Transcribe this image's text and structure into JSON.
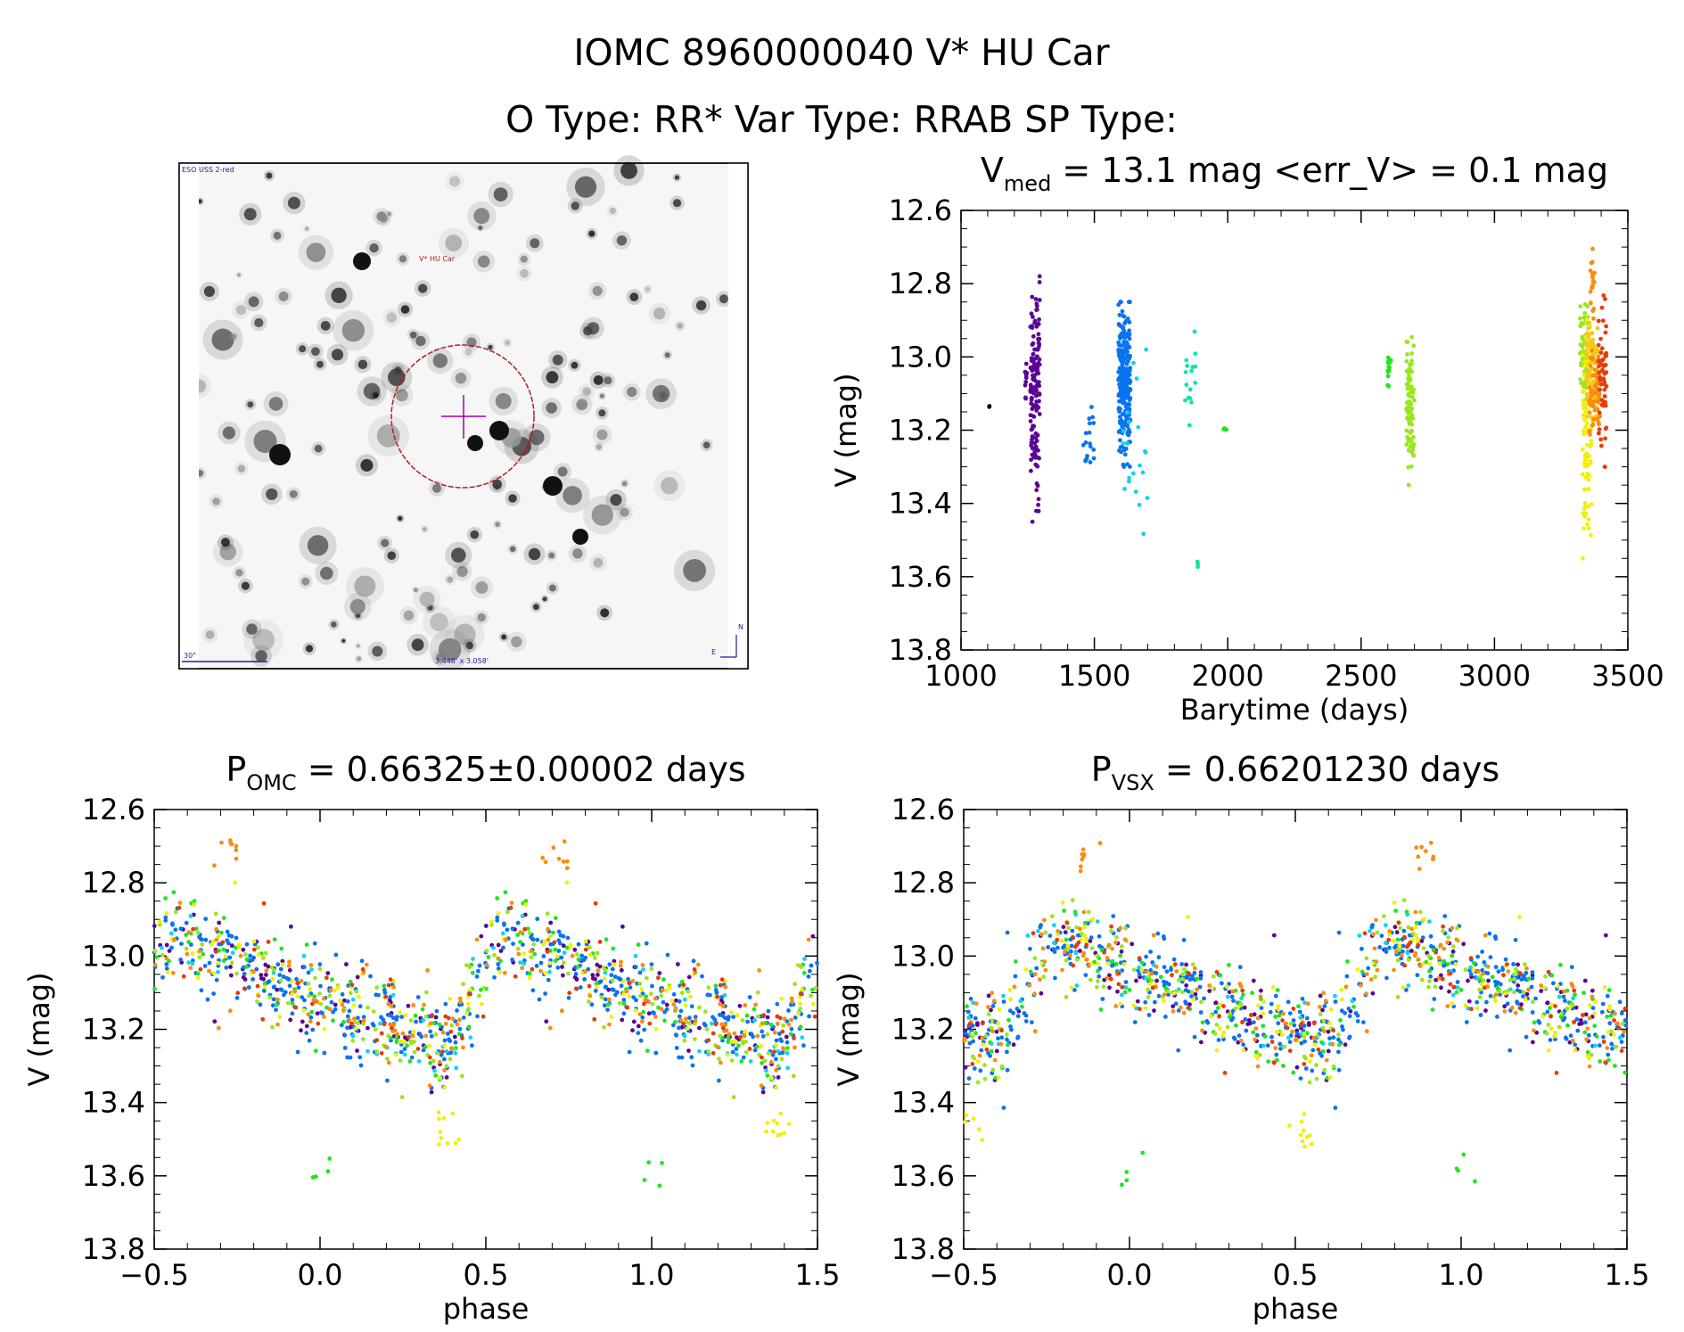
{
  "header": {
    "title": "IOMC 8960000040   V* HU Car",
    "subtitle": "O Type: RR*  Var Type: RRAB  SP Type:"
  },
  "finder": {
    "survey_label": "ESO USS 2-red",
    "target_label": "V* HU Car",
    "scale_label": "30\"",
    "fov_label": "3.448' x 3.058'",
    "compass_n": "N",
    "compass_e": "E"
  },
  "colors": {
    "purple": "#5a0596",
    "blue": "#0a73f0",
    "cyan": "#12d2f0",
    "teal": "#12e6a0",
    "green": "#1ee61e",
    "lime": "#9ae61e",
    "yellow": "#f0f00a",
    "gold": "#f5c814",
    "orange": "#fa8c0f",
    "red": "#e63c0a",
    "black": "#000000",
    "finder_circle": "#b41e1e",
    "finder_cross": "#a000a0",
    "finder_text_blue": "#1e1e96"
  },
  "chart_data": [
    {
      "type": "scatter",
      "id": "lightcurve",
      "title_main": "V",
      "title_sub": "med",
      "title_rest": " = 13.1 mag <err_V> = 0.1 mag",
      "xlabel": "Barytime (days)",
      "ylabel": "V (mag)",
      "xlim": [
        1000,
        3500
      ],
      "ylim": [
        12.6,
        13.8
      ],
      "y_inverted": true,
      "xticks": [
        1000,
        1500,
        2000,
        2500,
        3000,
        3500
      ],
      "yticks": [
        12.6,
        12.8,
        13.0,
        13.2,
        13.4,
        13.6,
        13.8
      ],
      "x_tick_labels": [
        "1000",
        "1500",
        "2000",
        "2500",
        "3000",
        "3500"
      ],
      "y_tick_labels": [
        "12.6",
        "12.8",
        "13.0",
        "13.2",
        "13.4",
        "13.6",
        "13.8"
      ],
      "groups": [
        {
          "color": "black",
          "x_range": [
            1105,
            1110
          ],
          "v_range": [
            13.12,
            13.15
          ],
          "n": 2
        },
        {
          "color": "purple",
          "x_range": [
            1240,
            1250
          ],
          "v_range": [
            12.95,
            13.15
          ],
          "n": 10
        },
        {
          "color": "purple",
          "x_range": [
            1260,
            1295
          ],
          "v_range": [
            12.78,
            13.45
          ],
          "n": 140
        },
        {
          "color": "blue",
          "x_range": [
            1455,
            1500
          ],
          "v_range": [
            13.08,
            13.35
          ],
          "n": 18
        },
        {
          "color": "blue",
          "x_range": [
            1590,
            1635
          ],
          "v_range": [
            12.85,
            13.3
          ],
          "n": 260
        },
        {
          "color": "cyan",
          "x_range": [
            1600,
            1700
          ],
          "v_range": [
            12.98,
            13.55
          ],
          "n": 22
        },
        {
          "color": "teal",
          "x_range": [
            1840,
            1880
          ],
          "v_range": [
            12.88,
            13.25
          ],
          "n": 16
        },
        {
          "color": "teal",
          "x_range": [
            1885,
            1895
          ],
          "v_range": [
            13.55,
            13.6
          ],
          "n": 3
        },
        {
          "color": "green",
          "x_range": [
            1985,
            1995
          ],
          "v_range": [
            13.19,
            13.21
          ],
          "n": 4
        },
        {
          "color": "green",
          "x_range": [
            2595,
            2615
          ],
          "v_range": [
            12.98,
            13.08
          ],
          "n": 16
        },
        {
          "color": "lime",
          "x_range": [
            2670,
            2700
          ],
          "v_range": [
            12.92,
            13.35
          ],
          "n": 90
        },
        {
          "color": "lime",
          "x_range": [
            3320,
            3350
          ],
          "v_range": [
            12.8,
            13.2
          ],
          "n": 60
        },
        {
          "color": "yellow",
          "x_range": [
            3330,
            3365
          ],
          "v_range": [
            12.85,
            13.55
          ],
          "n": 90
        },
        {
          "color": "gold",
          "x_range": [
            3345,
            3390
          ],
          "v_range": [
            12.9,
            13.2
          ],
          "n": 90
        },
        {
          "color": "orange",
          "x_range": [
            3360,
            3375
          ],
          "v_range": [
            12.68,
            12.9
          ],
          "n": 20
        },
        {
          "color": "orange",
          "x_range": [
            3355,
            3395
          ],
          "v_range": [
            12.95,
            13.25
          ],
          "n": 60
        },
        {
          "color": "red",
          "x_range": [
            3390,
            3420
          ],
          "v_range": [
            12.8,
            13.3
          ],
          "n": 60
        }
      ]
    },
    {
      "type": "scatter",
      "id": "phase-omc",
      "title_main": "P",
      "title_sub": "OMC",
      "title_rest": " = 0.66325±0.00002 days",
      "xlabel": "phase",
      "ylabel": "V (mag)",
      "xlim": [
        -0.5,
        1.5
      ],
      "ylim": [
        12.6,
        13.8
      ],
      "y_inverted": true,
      "xticks": [
        -0.5,
        0.0,
        0.5,
        1.0,
        1.5
      ],
      "yticks": [
        12.6,
        12.8,
        13.0,
        13.2,
        13.4,
        13.6,
        13.8
      ],
      "x_tick_labels": [
        "−0.5",
        "0.0",
        "0.5",
        "1.0",
        "1.5"
      ],
      "y_tick_labels": [
        "12.6",
        "12.8",
        "13.0",
        "13.2",
        "13.4",
        "13.6",
        "13.8"
      ],
      "curve": {
        "max_phase": 0.56,
        "min_phase": 0.36,
        "v_bright": 12.95,
        "v_faint": 13.25,
        "scatter": 0.09
      },
      "groups": [
        {
          "color": "purple",
          "phases": [
            0.0,
            1.0
          ],
          "n": 70
        },
        {
          "color": "blue",
          "phases": [
            0.0,
            1.0
          ],
          "n": 220
        },
        {
          "color": "cyan",
          "phases": [
            0.0,
            1.0
          ],
          "n": 30
        },
        {
          "color": "green",
          "phases": [
            0.0,
            1.0
          ],
          "n": 60
        },
        {
          "color": "lime",
          "phases": [
            0.0,
            1.0
          ],
          "n": 70
        },
        {
          "color": "yellow",
          "phases": [
            0.0,
            1.0
          ],
          "n": 60
        },
        {
          "color": "orange",
          "phases": [
            0.0,
            1.0
          ],
          "n": 70
        },
        {
          "color": "red",
          "phases": [
            0.0,
            1.0
          ],
          "n": 40
        }
      ],
      "clusters": [
        {
          "color": "orange",
          "x": 0.71,
          "v": 12.72,
          "n": 8
        },
        {
          "color": "orange",
          "x": -0.29,
          "v": 12.72,
          "n": 8
        },
        {
          "color": "yellow",
          "x": 0.38,
          "v": 13.47,
          "n": 10
        },
        {
          "color": "yellow",
          "x": 1.38,
          "v": 13.47,
          "n": 10
        },
        {
          "color": "green",
          "x": 0.01,
          "v": 13.58,
          "n": 4
        },
        {
          "color": "green",
          "x": 1.01,
          "v": 13.58,
          "n": 4
        }
      ]
    },
    {
      "type": "scatter",
      "id": "phase-vsx",
      "title_main": "P",
      "title_sub": "VSX",
      "title_rest": " = 0.66201230 days",
      "xlabel": "phase",
      "ylabel": "V (mag)",
      "xlim": [
        -0.5,
        1.5
      ],
      "ylim": [
        12.6,
        13.8
      ],
      "y_inverted": true,
      "xticks": [
        -0.5,
        0.0,
        0.5,
        1.0,
        1.5
      ],
      "yticks": [
        12.6,
        12.8,
        13.0,
        13.2,
        13.4,
        13.6,
        13.8
      ],
      "x_tick_labels": [
        "−0.5",
        "0.0",
        "0.5",
        "1.0",
        "1.5"
      ],
      "y_tick_labels": [
        "12.6",
        "12.8",
        "13.0",
        "13.2",
        "13.4",
        "13.6",
        "13.8"
      ],
      "curve": {
        "max_phase": 0.78,
        "min_phase": 0.62,
        "v_bright": 12.95,
        "v_faint": 13.25,
        "scatter": 0.09
      },
      "groups": [
        {
          "color": "purple",
          "phases": [
            0.0,
            1.0
          ],
          "n": 70
        },
        {
          "color": "blue",
          "phases": [
            0.0,
            1.0
          ],
          "n": 220
        },
        {
          "color": "cyan",
          "phases": [
            0.0,
            1.0
          ],
          "n": 30
        },
        {
          "color": "green",
          "phases": [
            0.0,
            1.0
          ],
          "n": 60
        },
        {
          "color": "lime",
          "phases": [
            0.0,
            1.0
          ],
          "n": 70
        },
        {
          "color": "yellow",
          "phases": [
            0.0,
            1.0
          ],
          "n": 60
        },
        {
          "color": "orange",
          "phases": [
            0.0,
            1.0
          ],
          "n": 70
        },
        {
          "color": "red",
          "phases": [
            0.0,
            1.0
          ],
          "n": 40
        }
      ],
      "clusters": [
        {
          "color": "orange",
          "x": 0.89,
          "v": 12.72,
          "n": 8
        },
        {
          "color": "orange",
          "x": -0.11,
          "v": 12.72,
          "n": 8
        },
        {
          "color": "yellow",
          "x": 0.52,
          "v": 13.47,
          "n": 10
        },
        {
          "color": "yellow",
          "x": -0.48,
          "v": 13.47,
          "n": 6
        },
        {
          "color": "green",
          "x": 0.01,
          "v": 13.58,
          "n": 4
        },
        {
          "color": "green",
          "x": 1.01,
          "v": 13.58,
          "n": 4
        }
      ]
    }
  ]
}
